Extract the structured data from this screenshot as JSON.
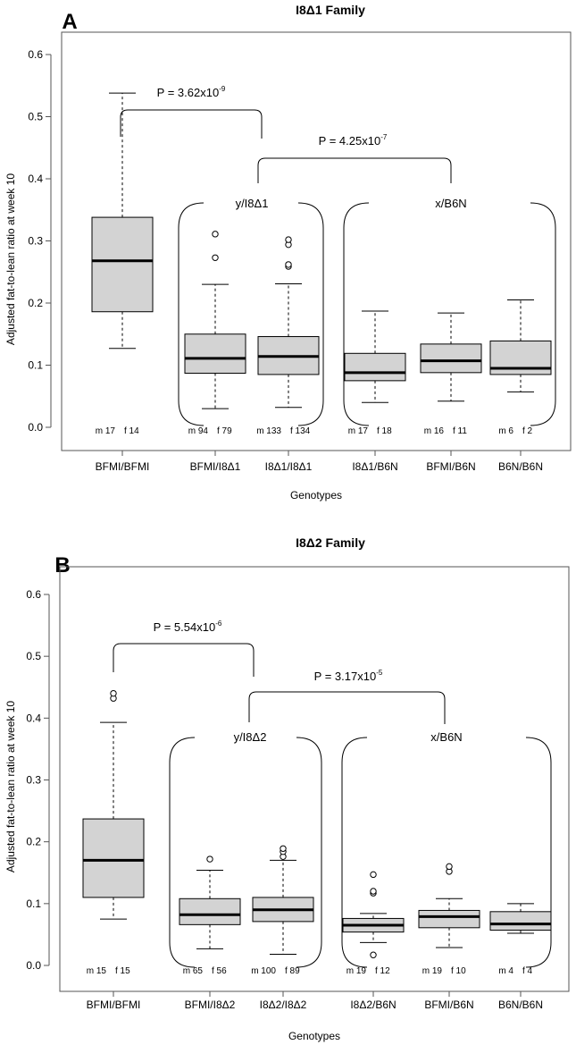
{
  "chart_data": [
    {
      "type": "box",
      "panel": "A",
      "title": "I8Δ1 Family",
      "xlabel": "Genotypes",
      "ylabel": "Adjusted fat-to-lean ratio at week 10",
      "ylim": [
        0,
        0.6
      ],
      "yticks": [
        "0.0",
        "0.1",
        "0.2",
        "0.3",
        "0.4",
        "0.5",
        "0.6"
      ],
      "categories": [
        "BFMI/BFMI",
        "BFMI/I8Δ1",
        "I8Δ1/I8Δ1",
        "I8Δ1/B6N",
        "BFMI/B6N",
        "B6N/B6N"
      ],
      "boxes": [
        {
          "min": 0.127,
          "q1": 0.186,
          "median": 0.268,
          "q3": 0.338,
          "max": 0.538,
          "outliers": []
        },
        {
          "min": 0.03,
          "q1": 0.087,
          "median": 0.111,
          "q3": 0.15,
          "max": 0.23,
          "outliers": [
            0.273,
            0.311
          ]
        },
        {
          "min": 0.032,
          "q1": 0.085,
          "median": 0.114,
          "q3": 0.146,
          "max": 0.231,
          "outliers": [
            0.259,
            0.262,
            0.294,
            0.302
          ]
        },
        {
          "min": 0.04,
          "q1": 0.075,
          "median": 0.088,
          "q3": 0.119,
          "max": 0.187,
          "outliers": []
        },
        {
          "min": 0.042,
          "q1": 0.088,
          "median": 0.107,
          "q3": 0.134,
          "max": 0.184,
          "outliers": []
        },
        {
          "min": 0.057,
          "q1": 0.085,
          "median": 0.095,
          "q3": 0.139,
          "max": 0.205,
          "outliers": []
        }
      ],
      "counts": [
        {
          "m": "m 17",
          "f": "f 14"
        },
        {
          "m": "m 94",
          "f": "f 79"
        },
        {
          "m": "m 133",
          "f": "f 134"
        },
        {
          "m": "m 17",
          "f": "f 18"
        },
        {
          "m": "m 16",
          "f": "f 11"
        },
        {
          "m": "m 6",
          "f": "f 2"
        }
      ],
      "groups": [
        {
          "label": "y/I8Δ1",
          "members": [
            1,
            2
          ]
        },
        {
          "label": "x/B6N",
          "members": [
            3,
            4,
            5
          ]
        }
      ],
      "comparisons": [
        {
          "text": "P = 3.62x10",
          "exponent": "-9",
          "from": "BFMI/BFMI",
          "to": "y/I8Δ1"
        },
        {
          "text": "P = 4.25x10",
          "exponent": "-7",
          "from": "y/I8Δ1",
          "to": "x/B6N"
        }
      ]
    },
    {
      "type": "box",
      "panel": "B",
      "title": "I8Δ2 Family",
      "xlabel": "Genotypes",
      "ylabel": "Adjusted fat-to-lean ratio at week 10",
      "ylim": [
        0,
        0.6
      ],
      "yticks": [
        "0.0",
        "0.1",
        "0.2",
        "0.3",
        "0.4",
        "0.5",
        "0.6"
      ],
      "categories": [
        "BFMI/BFMI",
        "BFMI/I8Δ2",
        "I8Δ2/I8Δ2",
        "I8Δ2/B6N",
        "BFMI/B6N",
        "B6N/B6N"
      ],
      "boxes": [
        {
          "min": 0.075,
          "q1": 0.11,
          "median": 0.17,
          "q3": 0.237,
          "max": 0.393,
          "outliers": [
            0.432,
            0.44
          ]
        },
        {
          "min": 0.027,
          "q1": 0.066,
          "median": 0.082,
          "q3": 0.108,
          "max": 0.154,
          "outliers": [
            0.172
          ]
        },
        {
          "min": 0.018,
          "q1": 0.071,
          "median": 0.09,
          "q3": 0.11,
          "max": 0.17,
          "outliers": [
            0.176,
            0.184,
            0.189
          ]
        },
        {
          "min": 0.037,
          "q1": 0.054,
          "median": 0.065,
          "q3": 0.076,
          "max": 0.084,
          "outliers": [
            0.017,
            0.117,
            0.12,
            0.147
          ]
        },
        {
          "min": 0.029,
          "q1": 0.061,
          "median": 0.079,
          "q3": 0.089,
          "max": 0.108,
          "outliers": [
            0.152,
            0.16
          ]
        },
        {
          "min": 0.052,
          "q1": 0.057,
          "median": 0.067,
          "q3": 0.087,
          "max": 0.1,
          "outliers": []
        }
      ],
      "counts": [
        {
          "m": "m 15",
          "f": "f 15"
        },
        {
          "m": "m 65",
          "f": "f 56"
        },
        {
          "m": "m 100",
          "f": "f 89"
        },
        {
          "m": "m 19",
          "f": "f 12"
        },
        {
          "m": "m 19",
          "f": "f 10"
        },
        {
          "m": "m 4",
          "f": "f 4"
        }
      ],
      "groups": [
        {
          "label": "y/I8Δ2",
          "members": [
            1,
            2
          ]
        },
        {
          "label": "x/B6N",
          "members": [
            3,
            4,
            5
          ]
        }
      ],
      "comparisons": [
        {
          "text": "P = 5.54x10",
          "exponent": "-6",
          "from": "BFMI/BFMI",
          "to": "y/I8Δ2"
        },
        {
          "text": "P = 3.17x10",
          "exponent": "-5",
          "from": "y/I8Δ2",
          "to": "x/B6N"
        }
      ]
    }
  ],
  "colors": {
    "box_fill": "#d3d3d3",
    "stroke": "#000000",
    "axis": "#555555"
  }
}
